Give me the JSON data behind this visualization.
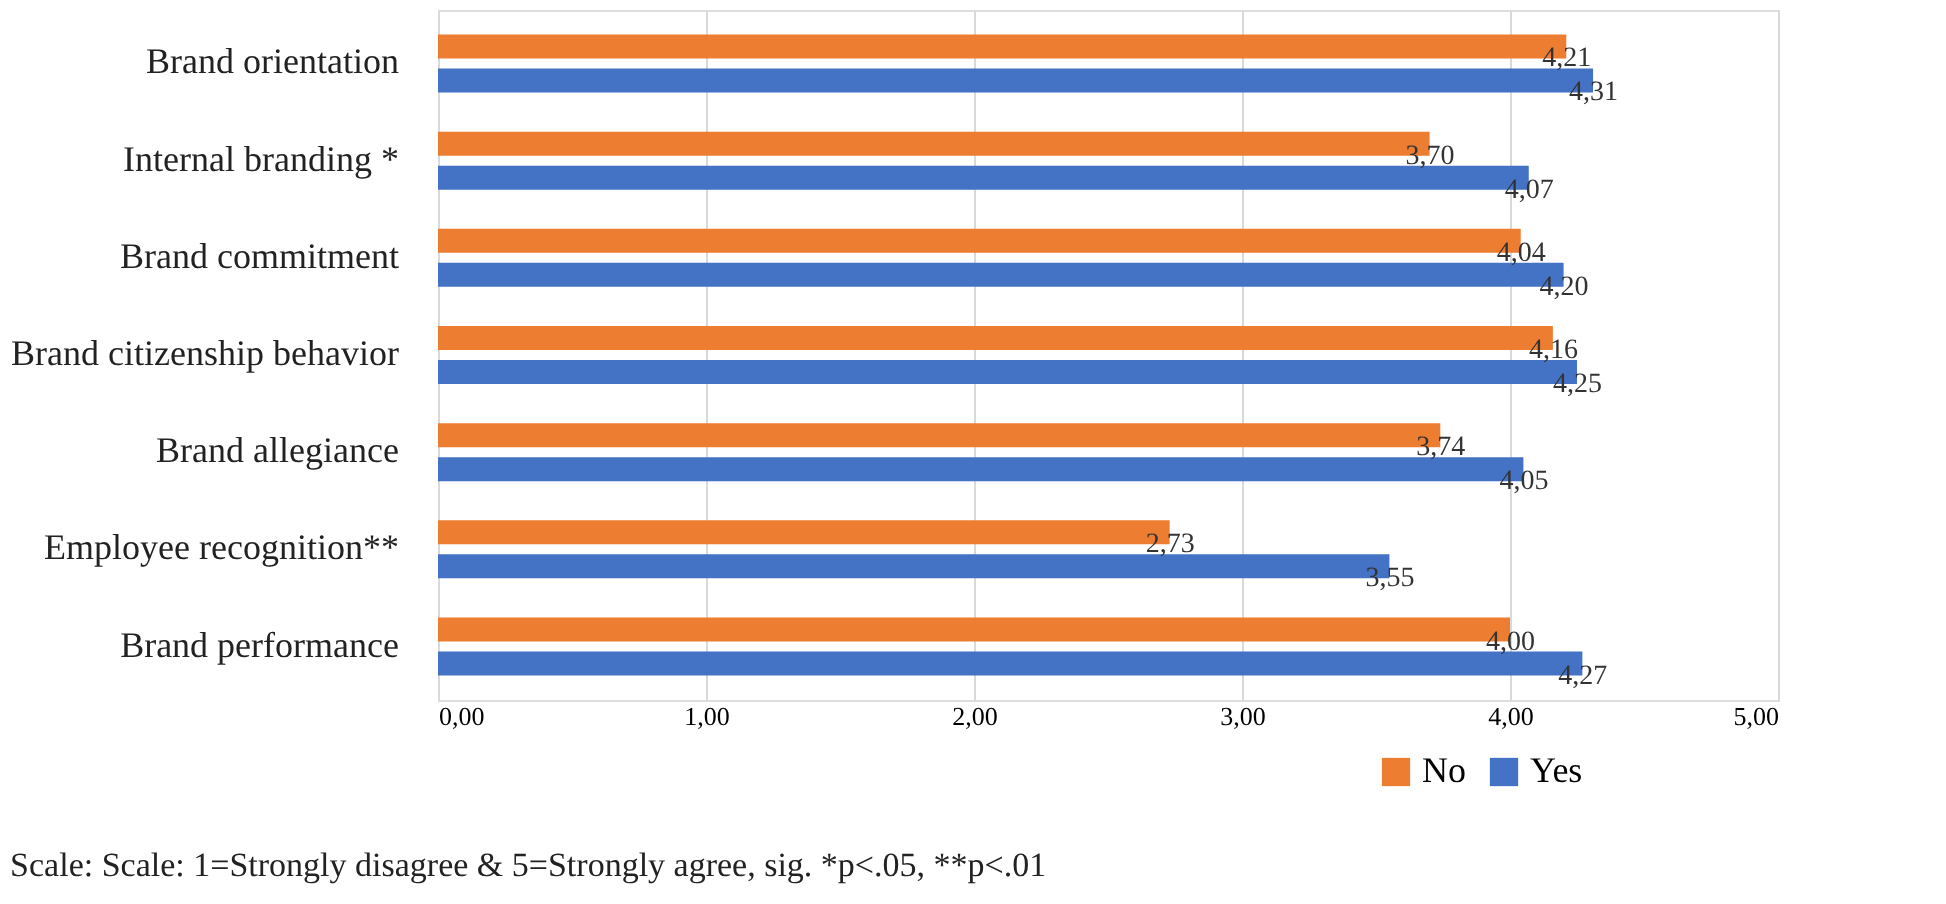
{
  "chart_data": {
    "type": "bar",
    "orientation": "horizontal",
    "categories": [
      "Brand orientation",
      "Internal branding *",
      "Brand commitment",
      "Brand citizenship behavior",
      "Brand allegiance",
      "Employee recognition**",
      "Brand performance"
    ],
    "series": [
      {
        "name": "No",
        "color": "#ed7d31",
        "values": [
          4.21,
          3.7,
          4.04,
          4.16,
          3.74,
          2.73,
          4.0
        ],
        "value_labels": [
          "4,21",
          "3,70",
          "4,04",
          "4,16",
          "3,74",
          "2,73",
          "4,00"
        ]
      },
      {
        "name": "Yes",
        "color": "#4472c4",
        "values": [
          4.31,
          4.07,
          4.2,
          4.25,
          4.05,
          3.55,
          4.27
        ],
        "value_labels": [
          "4,31",
          "4,07",
          "4,20",
          "4,25",
          "4,05",
          "3,55",
          "4,27"
        ]
      }
    ],
    "xlim": [
      0,
      5
    ],
    "xticks": [
      {
        "value": 0,
        "label": "0,00"
      },
      {
        "value": 1,
        "label": "1,00"
      },
      {
        "value": 2,
        "label": "2,00"
      },
      {
        "value": 3,
        "label": "3,00"
      },
      {
        "value": 4,
        "label": "4,00"
      },
      {
        "value": 5,
        "label": "5,00"
      }
    ],
    "grid": "x",
    "legend": "bottom right",
    "annotations": [
      "Scale: Scale: 1=Strongly disagree & 5=Strongly agree, sig. *p<.05, **p<.01"
    ]
  }
}
